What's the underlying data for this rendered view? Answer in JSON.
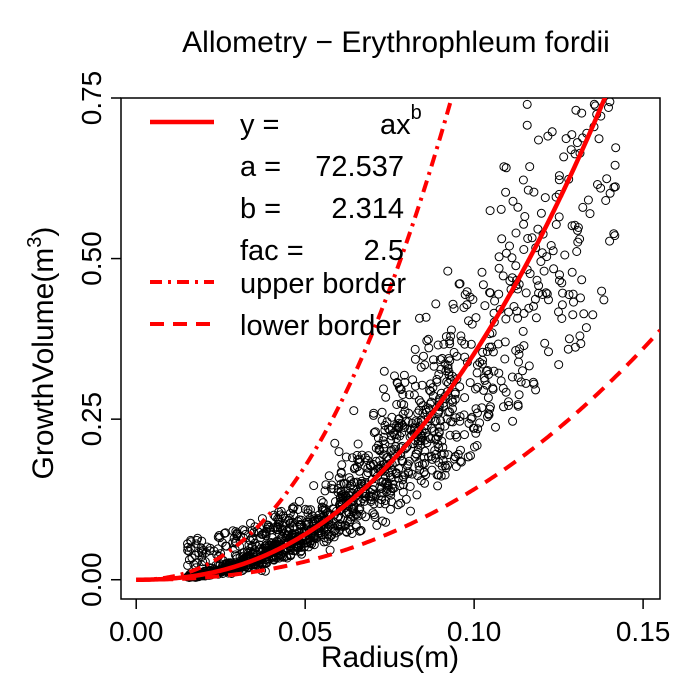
{
  "chart_data": {
    "type": "scatter",
    "title": "Allometry − Erythrophleum fordii",
    "xlabel": "Radius(m)",
    "ylabel_main": "GrowthVolume(m",
    "ylabel_sup": "3",
    "ylabel_close": ")",
    "xlim": [
      -0.0045,
      0.155
    ],
    "ylim": [
      -0.03,
      0.75
    ],
    "x_ticks": [
      0.0,
      0.05,
      0.1,
      0.15
    ],
    "x_tick_labels": [
      "0.00",
      "0.05",
      "0.10",
      "0.15"
    ],
    "y_ticks": [
      0.0,
      0.25,
      0.5,
      0.75
    ],
    "y_tick_labels": [
      "0.00",
      "0.25",
      "0.50",
      "0.75"
    ],
    "grid": false,
    "legend_position": "top-left",
    "model": {
      "a": 72.537,
      "b": 2.314,
      "fac": 2.5
    },
    "legend": {
      "fit_label_y": "y =",
      "fit_label_formula": "ax",
      "fit_label_sup": "b",
      "a_label": "a =",
      "a_value": "72.537",
      "b_label": "b =",
      "b_value": "2.314",
      "fac_label": "fac =",
      "fac_value": "2.5",
      "upper_label": "upper border",
      "lower_label": "lower border"
    },
    "series": [
      {
        "name": "observations",
        "style": "open-circle",
        "color": "#000000"
      },
      {
        "name": "fit",
        "style": "solid",
        "color": "#ff0000"
      },
      {
        "name": "upper border",
        "style": "dash-dot",
        "color": "#ff0000"
      },
      {
        "name": "lower border",
        "style": "dashed",
        "color": "#ff0000"
      }
    ],
    "points_sampling": {
      "n": 1500,
      "x_range": [
        0.015,
        0.142
      ],
      "spread_pct_typical": 0.25
    }
  }
}
